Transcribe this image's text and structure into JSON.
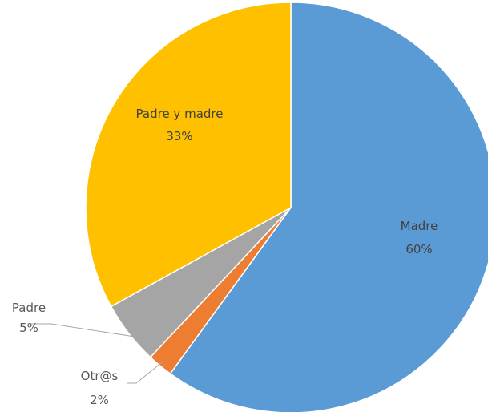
{
  "chart_data": {
    "type": "pie",
    "slices": [
      {
        "label": "Madre",
        "value": 60,
        "display": "60%",
        "color": "#5b9bd5"
      },
      {
        "label": "Otr@s",
        "value": 2,
        "display": "2%",
        "color": "#ed7d31"
      },
      {
        "label": "Padre",
        "value": 5,
        "display": "5%",
        "color": "#a5a5a5"
      },
      {
        "label": "Padre y madre",
        "value": 33,
        "display": "33%",
        "color": "#ffc000"
      }
    ],
    "start_angle_deg": 0,
    "direction": "clockwise",
    "legend": "none"
  }
}
